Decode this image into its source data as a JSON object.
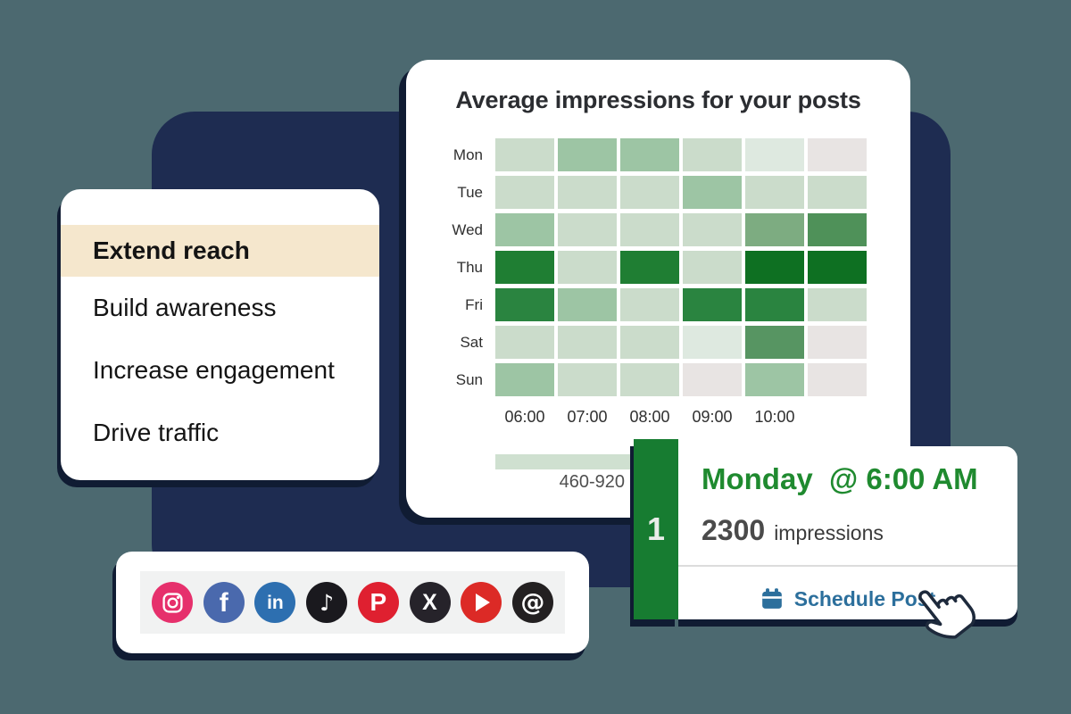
{
  "page": {
    "background": "#4C6970",
    "panel_color": "#1E2C51",
    "shadow_color": "#101C33"
  },
  "goals_card": {
    "highlight_color": "#F5E7CD",
    "items": [
      {
        "label": "Extend reach",
        "active": true
      },
      {
        "label": "Build awareness",
        "active": false
      },
      {
        "label": "Increase engagement",
        "active": false
      },
      {
        "label": "Drive traffic",
        "active": false
      }
    ]
  },
  "chart_data": {
    "type": "heatmap",
    "title": "Average impressions for your posts",
    "rows": [
      "Mon",
      "Tue",
      "Wed",
      "Thu",
      "Fri",
      "Sat",
      "Sun"
    ],
    "columns": 6,
    "x_tick_labels": [
      "06:00",
      "07:00",
      "08:00",
      "09:00",
      "10:00"
    ],
    "legend": {
      "label": "460-920",
      "bar_color": "#CFE0D0"
    },
    "levels": [
      [
        2,
        3,
        3,
        2,
        1,
        0
      ],
      [
        2,
        2,
        2,
        3,
        2,
        2
      ],
      [
        3,
        2,
        2,
        2,
        4,
        5
      ],
      [
        7,
        2,
        7,
        2,
        8,
        8
      ],
      [
        6,
        3,
        2,
        6,
        6,
        2
      ],
      [
        2,
        2,
        2,
        1,
        5,
        0
      ],
      [
        3,
        2,
        2,
        0,
        3,
        0
      ]
    ],
    "colors": [
      [
        "#CBDCCB",
        "#9DC5A4",
        "#9DC5A4",
        "#CBDCCB",
        "#DEE9E0",
        "#E8E4E3"
      ],
      [
        "#CBDCCB",
        "#CBDCCB",
        "#CBDCCB",
        "#9DC5A4",
        "#CBDCCB",
        "#CBDCCB"
      ],
      [
        "#9DC5A4",
        "#CBDCCB",
        "#CBDCCB",
        "#CBDCCB",
        "#7DAC81",
        "#4F9159"
      ],
      [
        "#1F7E33",
        "#CBDCCB",
        "#1F7E33",
        "#CBDCCB",
        "#0E7022",
        "#0E7022"
      ],
      [
        "#2A8440",
        "#9DC5A4",
        "#CBDCCB",
        "#2A8440",
        "#2A8440",
        "#CBDCCB"
      ],
      [
        "#CBDCCB",
        "#CBDCCB",
        "#CBDCCB",
        "#DEE9E0",
        "#579562",
        "#E8E4E3"
      ],
      [
        "#9DC5A4",
        "#CBDCCB",
        "#CBDCCB",
        "#E8E4E3",
        "#9DC5A4",
        "#E8E4E3"
      ]
    ]
  },
  "schedule_card": {
    "rank": "1",
    "tab_color": "#177C31",
    "title": "Monday  @ 6:00 AM",
    "title_color": "#1F8A2F",
    "impressions_value": "2300",
    "impressions_label": "impressions",
    "action_label": "Schedule Post",
    "action_color": "#2C6F9C"
  },
  "social_bar": {
    "icons": [
      {
        "name": "instagram",
        "color": "#E6306C"
      },
      {
        "name": "facebook",
        "color": "#4A69AD",
        "glyph": "f"
      },
      {
        "name": "linkedin",
        "color": "#2D6FB0",
        "glyph": "in"
      },
      {
        "name": "tiktok",
        "color": "#1A191E",
        "glyph": "♪"
      },
      {
        "name": "pinterest",
        "color": "#DF2030",
        "glyph": "P"
      },
      {
        "name": "x",
        "color": "#26232A",
        "glyph": "X"
      },
      {
        "name": "youtube",
        "color": "#DC2A26"
      },
      {
        "name": "threads",
        "color": "#232021",
        "glyph": "@"
      }
    ]
  }
}
